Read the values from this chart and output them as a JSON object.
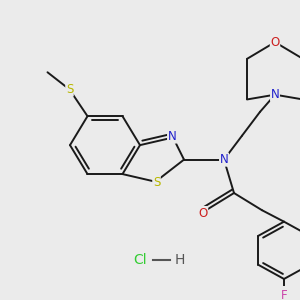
{
  "bg_color": "#ebebeb",
  "bond_color": "#1a1a1a",
  "atom_colors": {
    "N": "#2020cc",
    "O": "#cc2020",
    "S": "#b8b800",
    "F": "#cc44aa",
    "Cl": "#33cc33",
    "H": "#555555"
  },
  "font_size": 8.5,
  "lw": 1.4,
  "fig_width": 3.0,
  "fig_height": 3.0,
  "dpi": 100
}
